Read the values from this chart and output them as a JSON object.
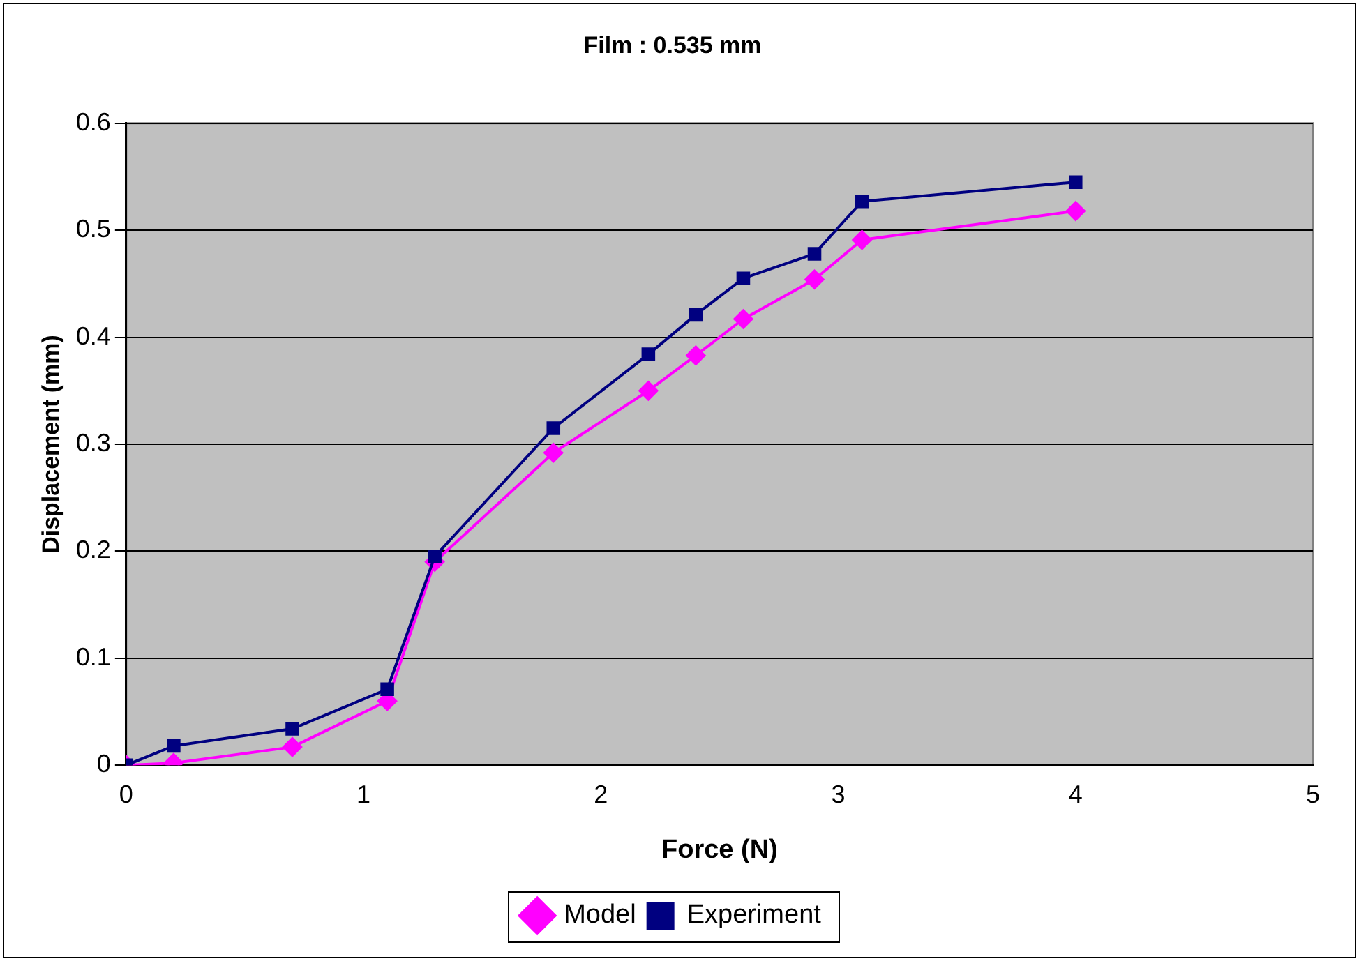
{
  "chart_data": {
    "type": "line",
    "title": "Film : 0.535 mm",
    "xlabel": "Force (N)",
    "ylabel": "Displacement (mm)",
    "x": [
      0,
      0.2,
      0.7,
      1.1,
      1.3,
      1.8,
      2.2,
      2.4,
      2.6,
      2.9,
      3.1,
      4.0
    ],
    "series": [
      {
        "name": "Model",
        "color": "#ff00ff",
        "marker": "diamond",
        "values": [
          0,
          0.002,
          0.017,
          0.06,
          0.19,
          0.292,
          0.35,
          0.383,
          0.417,
          0.454,
          0.491,
          0.518
        ]
      },
      {
        "name": "Experiment",
        "color": "#000080",
        "marker": "square",
        "values": [
          0,
          0.018,
          0.034,
          0.071,
          0.195,
          0.315,
          0.384,
          0.421,
          0.455,
          0.478,
          0.527,
          0.545
        ]
      }
    ],
    "xlim": [
      0,
      5
    ],
    "xticks": [
      0,
      1,
      2,
      3,
      4,
      5
    ],
    "ylim": [
      0,
      0.6
    ],
    "yticks": [
      0,
      0.1,
      0.2,
      0.3,
      0.4,
      0.5,
      0.6
    ],
    "grid": "y",
    "legend": "bottom",
    "line_style": "solid"
  }
}
